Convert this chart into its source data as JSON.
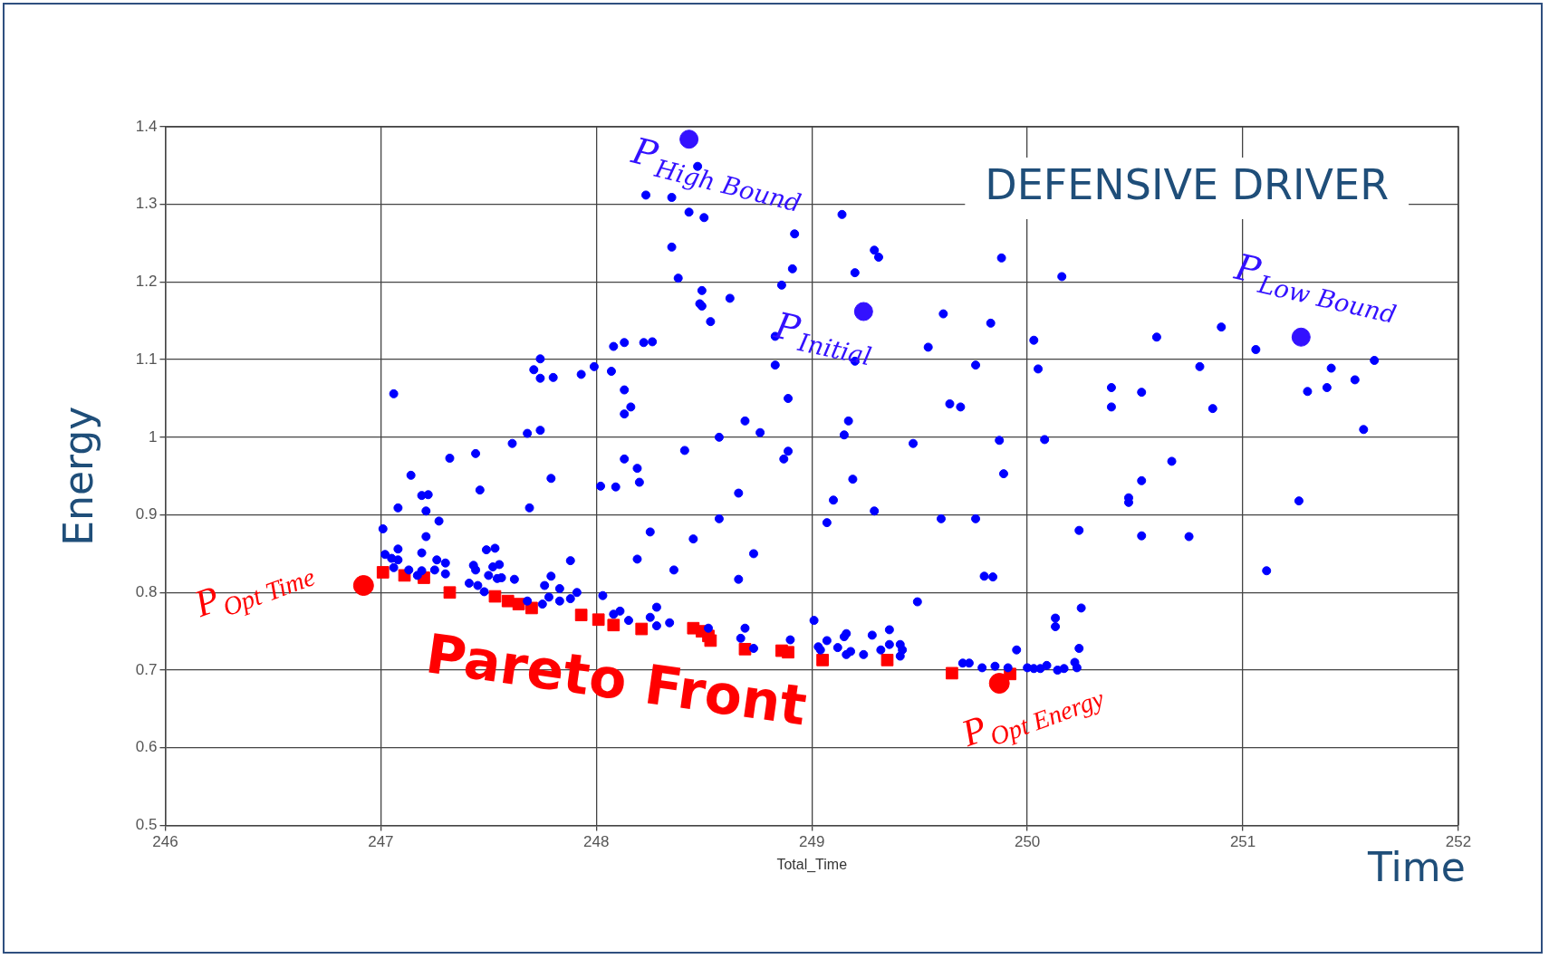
{
  "chart_data": {
    "type": "scatter",
    "title": "DEFENSIVE DRIVER",
    "xlabel": "Total_Time",
    "ylabel": "Energy",
    "xlim": [
      246,
      252
    ],
    "xticks": [
      246,
      247,
      248,
      249,
      250,
      251,
      252
    ],
    "ylim": [
      0.5,
      1.4
    ],
    "yticks": [
      0.5,
      0.6,
      0.7,
      0.8,
      0.9,
      1,
      1.1,
      1.2,
      1.3,
      1.4
    ],
    "grid": true,
    "legend": false,
    "series": [
      {
        "color": "#0000ff",
        "marker": "circle",
        "x": [
          247.01,
          247.08,
          247.21,
          247.27,
          247.69,
          248.25,
          247.21,
          247.02,
          247.05,
          247.08,
          247.08,
          247.06,
          247.13,
          247.17,
          247.19,
          247.19,
          247.25,
          247.26,
          247.3,
          247.3,
          247.41,
          247.43,
          247.44,
          247.45,
          247.48,
          247.49,
          247.53,
          247.5,
          247.52,
          247.55,
          247.54,
          247.56,
          247.62,
          247.68,
          247.75,
          247.76,
          247.79,
          247.78,
          247.83,
          247.83,
          247.88,
          247.88,
          247.91,
          248.03,
          248.08,
          248.11,
          248.15,
          248.19,
          248.25,
          248.28,
          248.28,
          248.23,
          247.06,
          247.74,
          247.71,
          247.74,
          247.8,
          247.93,
          247.99,
          248.07,
          248.08,
          248.13,
          248.22,
          248.26,
          248.13,
          248.16,
          248.13,
          247.68,
          247.74,
          247.61,
          247.44,
          247.32,
          247.14,
          247.19,
          247.22,
          247.46,
          247.79,
          248.13,
          248.19,
          248.2,
          248.02,
          248.09,
          248.47,
          248.35,
          248.43,
          248.5,
          248.92,
          248.35,
          248.91,
          248.38,
          249.14,
          249.29,
          249.31,
          249.2,
          249.88,
          250.16,
          248.49,
          248.62,
          248.48,
          248.49,
          248.53,
          248.86,
          248.83,
          249.61,
          249.83,
          249.54,
          249.2,
          250.03,
          249.76,
          250.05,
          248.83,
          250.39,
          250.39,
          250.53,
          250.53,
          248.89,
          248.69,
          248.76,
          248.57,
          249.17,
          249.15,
          249.64,
          249.69,
          249.47,
          249.87,
          250.08,
          248.41,
          248.89,
          248.87,
          249.89,
          249.19,
          248.66,
          249.1,
          249.29,
          250.47,
          250.47,
          248.57,
          249.6,
          249.76,
          249.07,
          250.24,
          248.45,
          248.36,
          248.73,
          248.66,
          249.8,
          249.84,
          249.49,
          250.53,
          250.25,
          250.13,
          250.13,
          248.34,
          248.52,
          248.69,
          248.67,
          248.73,
          248.9,
          249.01,
          249.03,
          249.04,
          249.07,
          249.12,
          249.15,
          249.16,
          249.16,
          249.18,
          249.24,
          249.28,
          249.32,
          249.36,
          249.36,
          249.41,
          249.42,
          249.41,
          249.7,
          249.73,
          249.79,
          249.85,
          249.91,
          249.95,
          250,
          250.03,
          250.06,
          250.09,
          250.14,
          250.17,
          250.22,
          250.23,
          250.24,
          250.6,
          250.9,
          251.06,
          251.61,
          251.41,
          251.52,
          251.39,
          251.3,
          250.8,
          250.86,
          251.56,
          250.67,
          251.26,
          250.75,
          251.11
        ],
        "values": [
          0.882,
          0.909,
          0.905,
          0.892,
          0.909,
          0.878,
          0.872,
          0.849,
          0.844,
          0.842,
          0.856,
          0.832,
          0.829,
          0.822,
          0.851,
          0.828,
          0.829,
          0.842,
          0.838,
          0.824,
          0.812,
          0.835,
          0.829,
          0.809,
          0.801,
          0.855,
          0.857,
          0.822,
          0.833,
          0.836,
          0.818,
          0.819,
          0.817,
          0.789,
          0.785,
          0.809,
          0.821,
          0.794,
          0.805,
          0.789,
          0.841,
          0.792,
          0.8,
          0.796,
          0.772,
          0.776,
          0.764,
          0.843,
          0.768,
          0.781,
          0.757,
          1.312,
          1.056,
          1.101,
          1.087,
          1.076,
          1.077,
          1.081,
          1.091,
          1.085,
          1.117,
          1.122,
          1.122,
          1.123,
          1.061,
          1.039,
          1.03,
          1.005,
          1.009,
          0.992,
          0.979,
          0.973,
          0.951,
          0.925,
          0.926,
          0.932,
          0.947,
          0.972,
          0.96,
          0.942,
          0.937,
          0.936,
          1.349,
          1.309,
          1.29,
          1.283,
          1.262,
          1.245,
          1.217,
          1.205,
          1.287,
          1.241,
          1.232,
          1.212,
          1.231,
          1.207,
          1.189,
          1.179,
          1.172,
          1.169,
          1.149,
          1.196,
          1.13,
          1.159,
          1.147,
          1.116,
          1.098,
          1.125,
          1.093,
          1.088,
          1.093,
          1.064,
          1.039,
          1.058,
          0.944,
          1.05,
          1.021,
          1.006,
          1,
          1.021,
          1.003,
          1.043,
          1.039,
          0.992,
          0.996,
          0.997,
          0.983,
          0.982,
          0.972,
          0.953,
          0.946,
          0.928,
          0.919,
          0.905,
          0.922,
          0.916,
          0.895,
          0.895,
          0.895,
          0.89,
          0.88,
          0.869,
          0.829,
          0.85,
          0.817,
          0.821,
          0.82,
          0.788,
          0.873,
          0.78,
          0.767,
          0.756,
          0.761,
          0.754,
          0.754,
          0.741,
          0.728,
          0.739,
          0.764,
          0.73,
          0.726,
          0.738,
          0.729,
          0.743,
          0.747,
          0.72,
          0.724,
          0.72,
          0.745,
          0.726,
          0.752,
          0.733,
          0.733,
          0.726,
          0.718,
          0.709,
          0.709,
          0.703,
          0.705,
          0.703,
          0.726,
          0.703,
          0.702,
          0.702,
          0.706,
          0.7,
          0.702,
          0.71,
          0.703,
          0.728,
          1.129,
          1.142,
          1.113,
          1.099,
          1.089,
          1.074,
          1.064,
          1.059,
          1.091,
          1.037,
          1.01,
          0.969,
          0.918,
          0.872,
          0.828
        ]
      },
      {
        "color": "#ff0000",
        "marker": "square",
        "x": [
          247.01,
          247.11,
          247.2,
          247.32,
          247.53,
          247.59,
          247.64,
          247.7,
          247.93,
          248.01,
          248.08,
          248.21,
          248.45,
          248.49,
          248.52,
          248.53,
          248.69,
          248.86,
          248.89,
          249.05,
          249.35,
          249.65,
          249.92
        ],
        "values": [
          0.826,
          0.822,
          0.819,
          0.8,
          0.795,
          0.789,
          0.785,
          0.78,
          0.771,
          0.765,
          0.758,
          0.753,
          0.754,
          0.75,
          0.744,
          0.738,
          0.727,
          0.725,
          0.723,
          0.713,
          0.713,
          0.696,
          0.695
        ]
      },
      {
        "color": "#3311ff",
        "marker": "circle",
        "x": [
          248.43,
          249.24,
          251.27
        ],
        "values": [
          1.384,
          1.162,
          1.129
        ]
      },
      {
        "color": "#ff0000",
        "marker": "circle",
        "x": [
          246.92,
          249.87
        ],
        "values": [
          0.809,
          0.683
        ]
      }
    ],
    "annotations": [
      {
        "text": "P$_{High Bound}$",
        "x": 248.43,
        "y": 1.384
      },
      {
        "text": "P$_{Initial}$",
        "x": 249.24,
        "y": 1.162
      },
      {
        "text": "P$_{Low Bound}$",
        "x": 251.27,
        "y": 1.129
      },
      {
        "text": "P$_{Opt Time}$",
        "x": 246.92,
        "y": 0.809
      },
      {
        "text": "P$_{Opt Energy}$",
        "x": 249.87,
        "y": 0.683
      },
      "Pareto Front",
      "Time"
    ]
  }
}
